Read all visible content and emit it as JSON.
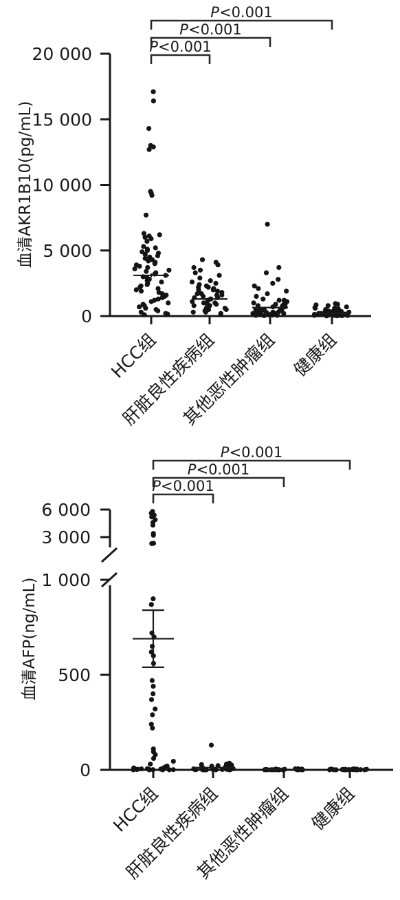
{
  "chart_data": [
    {
      "type": "scatter",
      "ylabel": "血清AKR1B10(pg/mL)",
      "ylim": [
        0,
        20000
      ],
      "yticks": [
        0,
        5000,
        10000,
        15000,
        20000
      ],
      "ytick_labels": [
        "0",
        "5 000",
        "10 000",
        "15 000",
        "20 000"
      ],
      "categories": [
        "HCC组",
        "肝脏良性疾病组",
        "其他恶性肿瘤组",
        "健康组"
      ],
      "groups": [
        {
          "name": "HCC组",
          "mean": 3100,
          "sem_low": 2950,
          "sem_high": 3250,
          "points": [
            17100,
            16400,
            14300,
            13000,
            12900,
            12700,
            9500,
            9400,
            9200,
            7700,
            6300,
            6200,
            6100,
            6000,
            5900,
            5700,
            5300,
            5200,
            5100,
            5000,
            4900,
            4800,
            4700,
            4600,
            4500,
            4400,
            4300,
            4200,
            4100,
            4000,
            3900,
            3800,
            3700,
            3600,
            3500,
            3400,
            3300,
            3200,
            3100,
            3000,
            2900,
            2800,
            2700,
            2600,
            2500,
            2400,
            2300,
            2200,
            2100,
            2000,
            1900,
            1800,
            1700,
            1600,
            1500,
            1400,
            1300,
            1200,
            1100,
            1000,
            900,
            800,
            700,
            600,
            500,
            400,
            300,
            200,
            150,
            100
          ]
        },
        {
          "name": "肝脏良性疾病组",
          "mean": 1300,
          "sem_low": 1220,
          "sem_high": 1380,
          "points": [
            4300,
            4100,
            3900,
            3700,
            3500,
            3300,
            3100,
            2900,
            2700,
            2500,
            2400,
            2300,
            2200,
            2100,
            2000,
            1900,
            1800,
            1700,
            1600,
            1500,
            1400,
            1300,
            1200,
            1100,
            1000,
            900,
            800,
            700,
            600,
            500,
            400,
            300,
            200,
            100,
            2600,
            2200,
            1800,
            1400,
            1000,
            600,
            2000,
            1600,
            1200,
            800,
            400,
            1700,
            1300,
            900,
            500,
            300
          ]
        },
        {
          "name": "其他恶性肿瘤组",
          "mean": 650,
          "sem_low": 590,
          "sem_high": 710,
          "points": [
            7000,
            3700,
            3300,
            2800,
            2500,
            2300,
            2100,
            1900,
            1700,
            1500,
            1300,
            1200,
            1100,
            1000,
            900,
            800,
            700,
            600,
            500,
            450,
            400,
            350,
            300,
            250,
            200,
            150,
            100,
            80,
            50,
            30,
            900,
            700,
            500,
            300,
            200,
            100,
            1200,
            800,
            400,
            150,
            600,
            350,
            120,
            60,
            250,
            900,
            500,
            200,
            100,
            50
          ]
        },
        {
          "name": "健康组",
          "mean": 200,
          "sem_low": 175,
          "sem_high": 225,
          "points": [
            950,
            900,
            850,
            800,
            700,
            650,
            600,
            550,
            500,
            450,
            400,
            380,
            350,
            320,
            300,
            280,
            250,
            220,
            200,
            180,
            160,
            150,
            130,
            120,
            100,
            90,
            80,
            70,
            60,
            50,
            40,
            30,
            20,
            10,
            600,
            500,
            400,
            300,
            200,
            150,
            100,
            80,
            60,
            40,
            300,
            250,
            200,
            150,
            100,
            50
          ]
        }
      ],
      "comparisons": [
        {
          "from": 0,
          "to": 1,
          "label_italic": "P",
          "label_rest": "<0.001"
        },
        {
          "from": 0,
          "to": 2,
          "label_italic": "P",
          "label_rest": "<0.001"
        },
        {
          "from": 0,
          "to": 3,
          "label_italic": "P",
          "label_rest": "<0.001"
        }
      ]
    },
    {
      "type": "scatter",
      "ylabel": "血清AFP(ng/mL)",
      "yscale": "broken",
      "ytick_labels": [
        "0",
        "500",
        "1 000",
        "3 000",
        "6 000"
      ],
      "yticks_lower": [
        0,
        500,
        1000
      ],
      "yticks_upper": [
        3000,
        6000
      ],
      "lower_range": [
        0,
        1000
      ],
      "upper_range": [
        1000,
        6000
      ],
      "categories": [
        "HCC组",
        "肝脏良性疾病组",
        "其他恶性肿瘤组",
        "健康组"
      ],
      "groups": [
        {
          "name": "HCC组",
          "mean": 690,
          "sem_low": 540,
          "sem_high": 840,
          "points": [
            5800,
            5600,
            5400,
            5200,
            4900,
            4600,
            4300,
            3400,
            3200,
            1800,
            1750,
            900,
            870,
            720,
            700,
            650,
            620,
            600,
            560,
            470,
            440,
            400,
            370,
            320,
            290,
            240,
            220,
            110,
            95,
            80,
            60,
            45,
            30,
            20,
            15,
            10,
            8,
            6,
            5,
            4,
            3,
            2,
            2,
            1,
            1,
            1,
            0.5,
            0.5,
            0.5,
            0.3
          ]
        },
        {
          "name": "肝脏良性疾病组",
          "mean": 12,
          "sem_low": 8,
          "sem_high": 16,
          "points": [
            130,
            35,
            30,
            28,
            25,
            22,
            20,
            18,
            15,
            12,
            10,
            9,
            8,
            7,
            6,
            5,
            4,
            3,
            3,
            2,
            2,
            1,
            1,
            1,
            0.5,
            0.5,
            0.3,
            0.2,
            0.1,
            0.1
          ]
        },
        {
          "name": "其他恶性肿瘤组",
          "mean": 2,
          "sem_low": 1,
          "sem_high": 3,
          "points": [
            6,
            5,
            4,
            4,
            3,
            3,
            3,
            2,
            2,
            2,
            2,
            1,
            1,
            1,
            1,
            1,
            1,
            0.5,
            0.5,
            0.5,
            0.5,
            0.3,
            0.3,
            0.2,
            0.2,
            0.1,
            0.1,
            0.1
          ]
        },
        {
          "name": "健康组",
          "mean": 1.5,
          "sem_low": 1,
          "sem_high": 2,
          "points": [
            5,
            4,
            4,
            3,
            3,
            3,
            2,
            2,
            2,
            2,
            2,
            1,
            1,
            1,
            1,
            1,
            1,
            1,
            0.5,
            0.5,
            0.5,
            0.5,
            0.3,
            0.3,
            0.2,
            0.2,
            0.1,
            0.1
          ]
        }
      ],
      "comparisons": [
        {
          "from": 0,
          "to": 1,
          "label_italic": "P",
          "label_rest": "<0.001"
        },
        {
          "from": 0,
          "to": 2,
          "label_italic": "P",
          "label_rest": "<0.001"
        },
        {
          "from": 0,
          "to": 3,
          "label_italic": "P",
          "label_rest": "<0.001"
        }
      ]
    }
  ]
}
